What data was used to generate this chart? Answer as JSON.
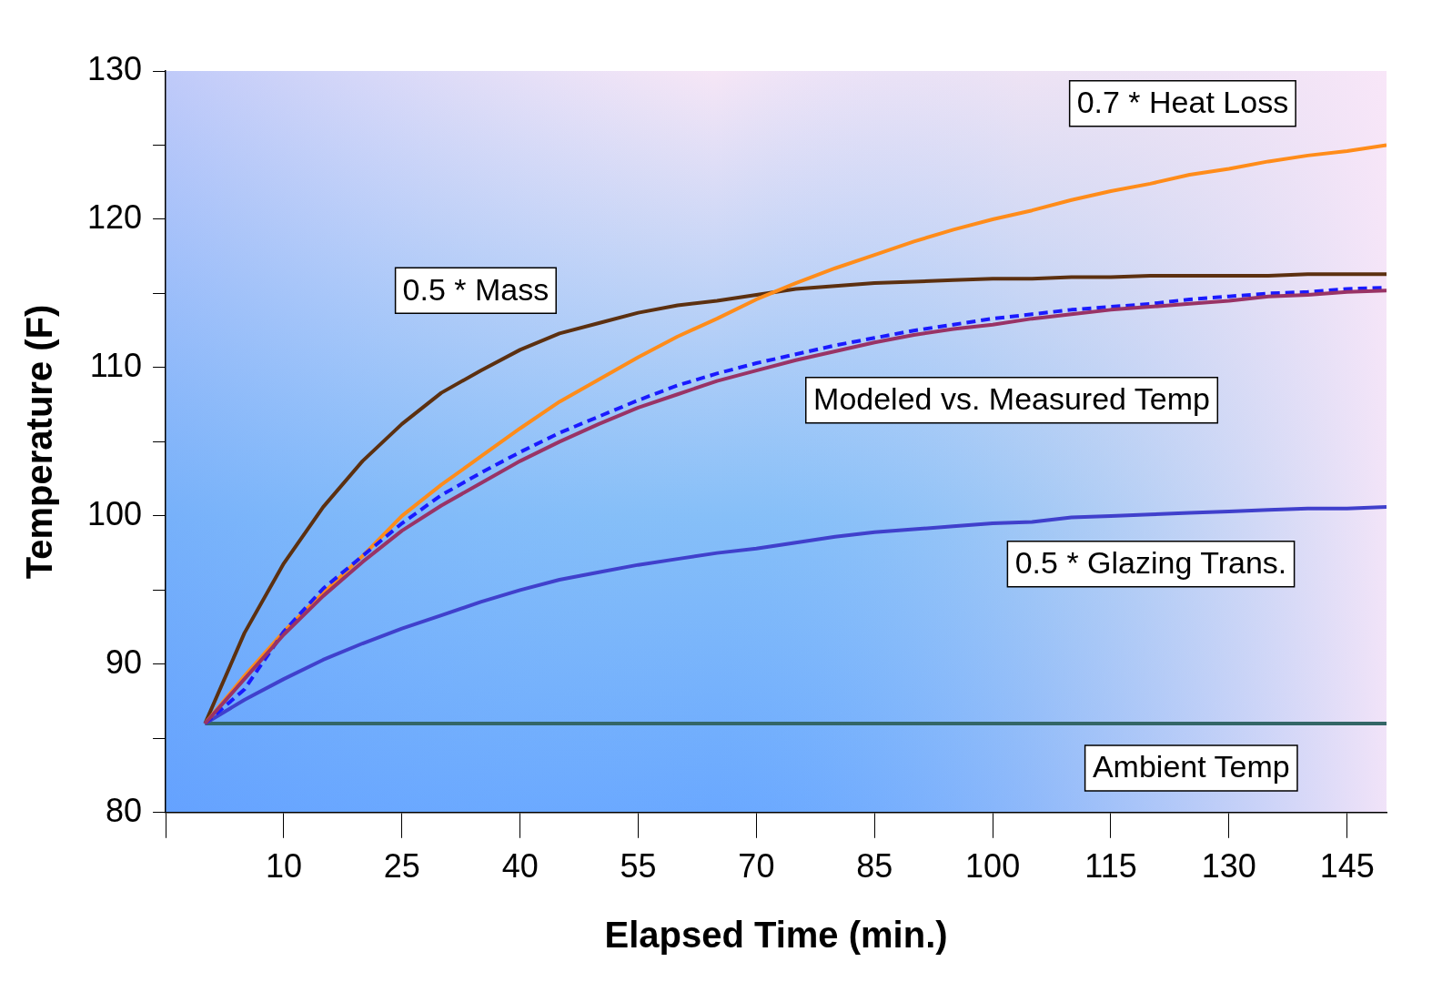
{
  "chart_data": {
    "type": "line",
    "xlabel": "Elapsed Time (min.)",
    "ylabel": "Temperature (F)",
    "x": [
      0,
      5,
      10,
      15,
      20,
      25,
      30,
      35,
      40,
      45,
      50,
      55,
      60,
      65,
      70,
      75,
      80,
      85,
      90,
      95,
      100,
      105,
      110,
      115,
      120,
      125,
      130,
      135,
      140,
      145,
      150
    ],
    "series": [
      {
        "name": "Modeled vs. Measured Temp",
        "color": "#993366",
        "values": [
          86,
          89,
          92,
          94.6,
          96.9,
          99,
          100.7,
          102.2,
          103.7,
          105,
          106.2,
          107.3,
          108.2,
          109.1,
          109.8,
          110.5,
          111.1,
          111.7,
          112.2,
          112.6,
          112.9,
          113.3,
          113.6,
          113.9,
          114.1,
          114.3,
          114.5,
          114.8,
          114.9,
          115.1,
          115.2
        ]
      },
      {
        "color": "#1a1aff",
        "line_style": "dashed",
        "values": [
          86,
          88.3,
          92.2,
          95.1,
          97.3,
          99.5,
          101.4,
          102.9,
          104.3,
          105.6,
          106.7,
          107.8,
          108.8,
          109.6,
          110.3,
          110.9,
          111.5,
          112,
          112.5,
          112.9,
          113.3,
          113.6,
          113.9,
          114.1,
          114.3,
          114.6,
          114.8,
          115,
          115.1,
          115.3,
          115.4
        ]
      },
      {
        "name": "0.7 * Heat Loss",
        "color": "#ff8c1a",
        "values": [
          86,
          89.2,
          92.2,
          94.8,
          97.3,
          100,
          102.1,
          104,
          105.9,
          107.7,
          109.2,
          110.7,
          112.1,
          113.3,
          114.6,
          115.7,
          116.7,
          117.6,
          118.5,
          119.3,
          120,
          120.6,
          121.3,
          121.9,
          122.4,
          123,
          123.4,
          123.9,
          124.3,
          124.6,
          125
        ]
      },
      {
        "name": "0.5 * Mass",
        "color": "#5c3010",
        "values": [
          86,
          92.1,
          96.8,
          100.6,
          103.7,
          106.2,
          108.3,
          109.8,
          111.2,
          112.3,
          113,
          113.7,
          114.2,
          114.5,
          114.9,
          115.3,
          115.5,
          115.7,
          115.8,
          115.9,
          116,
          116,
          116.1,
          116.1,
          116.2,
          116.2,
          116.2,
          116.2,
          116.3,
          116.3,
          116.3
        ]
      },
      {
        "name": "0.5 * Glazing Trans.",
        "color": "#4040cc",
        "values": [
          86,
          87.6,
          89,
          90.3,
          91.4,
          92.4,
          93.3,
          94.2,
          95,
          95.7,
          96.2,
          96.7,
          97.1,
          97.5,
          97.8,
          98.2,
          98.6,
          98.9,
          99.1,
          99.3,
          99.5,
          99.6,
          99.9,
          100,
          100.1,
          100.2,
          100.3,
          100.4,
          100.5,
          100.5,
          100.6
        ]
      },
      {
        "name": "Ambient Temp",
        "color": "#336666",
        "values": [
          86,
          86,
          86,
          86,
          86,
          86,
          86,
          86,
          86,
          86,
          86,
          86,
          86,
          86,
          86,
          86,
          86,
          86,
          86,
          86,
          86,
          86,
          86,
          86,
          86,
          86,
          86,
          86,
          86,
          86,
          86
        ]
      }
    ],
    "xlim": [
      -5,
      150
    ],
    "xticks": [
      {
        "value": -5,
        "label": null
      },
      10,
      25,
      40,
      55,
      70,
      85,
      100,
      115,
      130,
      145
    ],
    "ylim": [
      80,
      130
    ],
    "yticks": [
      80,
      {
        "value": 85,
        "label": null
      },
      90,
      {
        "value": 95,
        "label": null
      },
      100,
      {
        "value": 105,
        "label": null
      },
      110,
      {
        "value": 115,
        "label": null
      },
      120,
      {
        "value": 125,
        "label": null
      },
      130
    ],
    "grid": false,
    "legend": false,
    "marker": "none",
    "line_style": "solid"
  }
}
